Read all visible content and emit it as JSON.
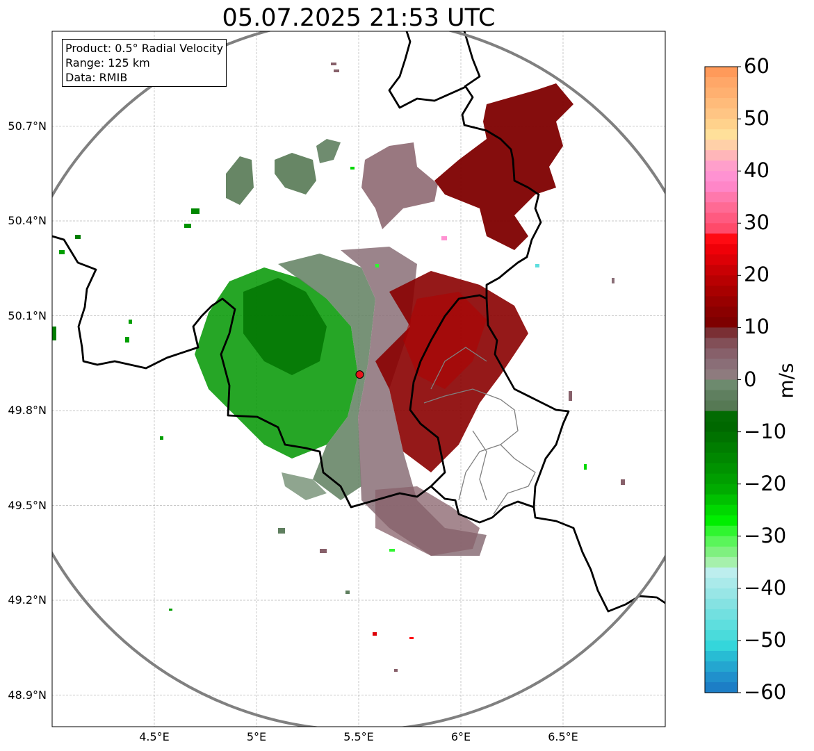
{
  "title": "05.07.2025 21:53 UTC",
  "info_box": {
    "product": "Product: 0.5° Radial Velocity",
    "range": "Range: 125 km",
    "source": "Data: RMIB"
  },
  "map": {
    "lon_range": [
      4.0,
      7.0
    ],
    "lat_range": [
      48.8,
      51.0
    ],
    "radar_site": {
      "lon": 5.505,
      "lat": 49.914
    },
    "range_km": 125,
    "lat_ticks": [
      {
        "value": 48.9,
        "label": "48.9°N"
      },
      {
        "value": 49.2,
        "label": "49.2°N"
      },
      {
        "value": 49.5,
        "label": "49.5°N"
      },
      {
        "value": 49.8,
        "label": "49.8°N"
      },
      {
        "value": 50.1,
        "label": "50.1°N"
      },
      {
        "value": 50.4,
        "label": "50.4°N"
      },
      {
        "value": 50.7,
        "label": "50.7°N"
      }
    ],
    "lon_ticks": [
      {
        "value": 4.5,
        "label": "4.5°E"
      },
      {
        "value": 5.0,
        "label": "5°E"
      },
      {
        "value": 5.5,
        "label": "5.5°E"
      },
      {
        "value": 6.0,
        "label": "6°E"
      },
      {
        "value": 6.5,
        "label": "6.5°E"
      }
    ],
    "gridlines": true,
    "colors": {
      "range_ring": "#808080",
      "borders": "#000000",
      "regions": "#808080",
      "radar_marker": "#e8141b"
    }
  },
  "colorbar": {
    "unit": "m/s",
    "min": -60,
    "max": 60,
    "ticks": [
      {
        "value": 60,
        "label": "60"
      },
      {
        "value": 50,
        "label": "50"
      },
      {
        "value": 40,
        "label": "40"
      },
      {
        "value": 30,
        "label": "30"
      },
      {
        "value": 20,
        "label": "20"
      },
      {
        "value": 10,
        "label": "10"
      },
      {
        "value": 0,
        "label": "0"
      },
      {
        "value": -10,
        "label": "−10"
      },
      {
        "value": -20,
        "label": "−20"
      },
      {
        "value": -30,
        "label": "−30"
      },
      {
        "value": -40,
        "label": "−40"
      },
      {
        "value": -50,
        "label": "−50"
      },
      {
        "value": -60,
        "label": "−60"
      }
    ],
    "stops": [
      {
        "from": 58,
        "to": 60,
        "color": "#ff9a5a"
      },
      {
        "from": 56,
        "to": 58,
        "color": "#ffa768"
      },
      {
        "from": 54,
        "to": 56,
        "color": "#ffb070"
      },
      {
        "from": 52,
        "to": 54,
        "color": "#ffbb7a"
      },
      {
        "from": 50,
        "to": 52,
        "color": "#ffc584"
      },
      {
        "from": 48,
        "to": 50,
        "color": "#ffd28c"
      },
      {
        "from": 46,
        "to": 48,
        "color": "#ffe09a"
      },
      {
        "from": 44,
        "to": 46,
        "color": "#ffd0a8"
      },
      {
        "from": 42,
        "to": 44,
        "color": "#ffb6b9"
      },
      {
        "from": 40,
        "to": 42,
        "color": "#ff9fcb"
      },
      {
        "from": 38,
        "to": 40,
        "color": "#ff92d2"
      },
      {
        "from": 36,
        "to": 38,
        "color": "#ff86c8"
      },
      {
        "from": 34,
        "to": 36,
        "color": "#ff78ac"
      },
      {
        "from": 32,
        "to": 34,
        "color": "#ff6a94"
      },
      {
        "from": 30,
        "to": 32,
        "color": "#ff5a80"
      },
      {
        "from": 28,
        "to": 30,
        "color": "#ff4a6a"
      },
      {
        "from": 26,
        "to": 28,
        "color": "#ff0a12"
      },
      {
        "from": 24,
        "to": 26,
        "color": "#ef0008"
      },
      {
        "from": 22,
        "to": 24,
        "color": "#dd0006"
      },
      {
        "from": 20,
        "to": 22,
        "color": "#c90004"
      },
      {
        "from": 18,
        "to": 20,
        "color": "#b80002"
      },
      {
        "from": 16,
        "to": 18,
        "color": "#a80000"
      },
      {
        "from": 14,
        "to": 16,
        "color": "#980000"
      },
      {
        "from": 12,
        "to": 14,
        "color": "#8a0000"
      },
      {
        "from": 10,
        "to": 12,
        "color": "#7e0000"
      },
      {
        "from": 8,
        "to": 10,
        "color": "#7a2f34"
      },
      {
        "from": 6,
        "to": 8,
        "color": "#824f57"
      },
      {
        "from": 4,
        "to": 6,
        "color": "#87606a"
      },
      {
        "from": 2,
        "to": 4,
        "color": "#8a6e77"
      },
      {
        "from": 0,
        "to": 2,
        "color": "#8e7b7e"
      },
      {
        "from": -2,
        "to": 0,
        "color": "#6d8a6e"
      },
      {
        "from": -4,
        "to": -2,
        "color": "#5f7f5f"
      },
      {
        "from": -6,
        "to": -4,
        "color": "#567954"
      },
      {
        "from": -8,
        "to": -6,
        "color": "#036b03"
      },
      {
        "from": -10,
        "to": -8,
        "color": "#006800"
      },
      {
        "from": -12,
        "to": -10,
        "color": "#007200"
      },
      {
        "from": -14,
        "to": -12,
        "color": "#007d00"
      },
      {
        "from": -16,
        "to": -14,
        "color": "#008700"
      },
      {
        "from": -18,
        "to": -16,
        "color": "#009200"
      },
      {
        "from": -20,
        "to": -18,
        "color": "#009e00"
      },
      {
        "from": -22,
        "to": -20,
        "color": "#00ab00"
      },
      {
        "from": -24,
        "to": -22,
        "color": "#00c100"
      },
      {
        "from": -26,
        "to": -24,
        "color": "#00d800"
      },
      {
        "from": -28,
        "to": -26,
        "color": "#00ee00"
      },
      {
        "from": -30,
        "to": -28,
        "color": "#30f530"
      },
      {
        "from": -32,
        "to": -30,
        "color": "#5af55a"
      },
      {
        "from": -34,
        "to": -32,
        "color": "#7ff07f"
      },
      {
        "from": -36,
        "to": -34,
        "color": "#a6f0ac"
      },
      {
        "from": -38,
        "to": -36,
        "color": "#bdeeee"
      },
      {
        "from": -40,
        "to": -38,
        "color": "#aaeaea"
      },
      {
        "from": -42,
        "to": -40,
        "color": "#98e6e6"
      },
      {
        "from": -44,
        "to": -42,
        "color": "#85e2e2"
      },
      {
        "from": -46,
        "to": -44,
        "color": "#72e0e0"
      },
      {
        "from": -48,
        "to": -46,
        "color": "#5edede"
      },
      {
        "from": -50,
        "to": -48,
        "color": "#4adbdb"
      },
      {
        "from": -52,
        "to": -50,
        "color": "#34d6db"
      },
      {
        "from": -54,
        "to": -52,
        "color": "#28bcd4"
      },
      {
        "from": -56,
        "to": -54,
        "color": "#24a6d0"
      },
      {
        "from": -58,
        "to": -56,
        "color": "#2090cc"
      },
      {
        "from": -60,
        "to": -58,
        "color": "#1c7ec6"
      }
    ]
  }
}
